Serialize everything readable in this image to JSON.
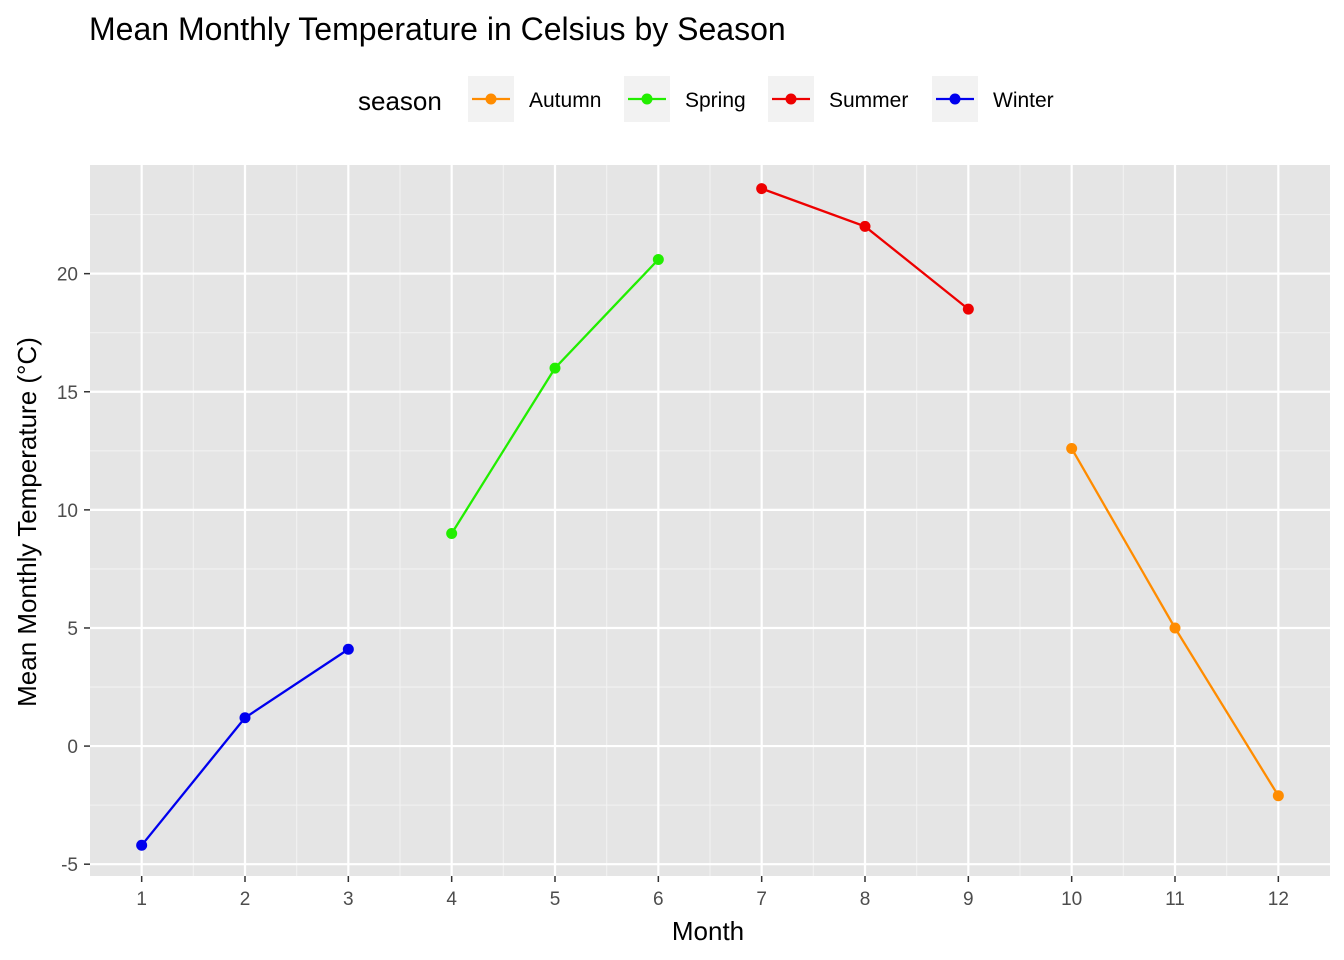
{
  "chart_data": {
    "type": "line",
    "title": "Mean Monthly Temperature in Celsius by Season",
    "xlabel": "Month",
    "ylabel": "Mean Monthly Temperature (°C)",
    "xlim": [
      0.5,
      12.5
    ],
    "ylim": [
      -5.5,
      24.6
    ],
    "x_ticks": [
      1,
      2,
      3,
      4,
      5,
      6,
      7,
      8,
      9,
      10,
      11,
      12
    ],
    "y_ticks": [
      -5,
      0,
      5,
      10,
      15,
      20
    ],
    "grid": true,
    "legend": {
      "title": "season",
      "position": "top",
      "entries": [
        "Autumn",
        "Spring",
        "Summer",
        "Winter"
      ]
    },
    "series": [
      {
        "name": "Autumn",
        "color": "#ff8c00",
        "x": [
          10,
          11,
          12
        ],
        "y": [
          12.6,
          5.0,
          -2.1
        ]
      },
      {
        "name": "Spring",
        "color": "#22ee00",
        "x": [
          4,
          5,
          6
        ],
        "y": [
          9.0,
          16.0,
          20.6
        ]
      },
      {
        "name": "Summer",
        "color": "#ee0000",
        "x": [
          7,
          8,
          9
        ],
        "y": [
          23.6,
          22.0,
          18.5
        ]
      },
      {
        "name": "Winter",
        "color": "#0000ee",
        "x": [
          1,
          2,
          3
        ],
        "y": [
          -4.2,
          1.2,
          4.1
        ]
      }
    ]
  }
}
